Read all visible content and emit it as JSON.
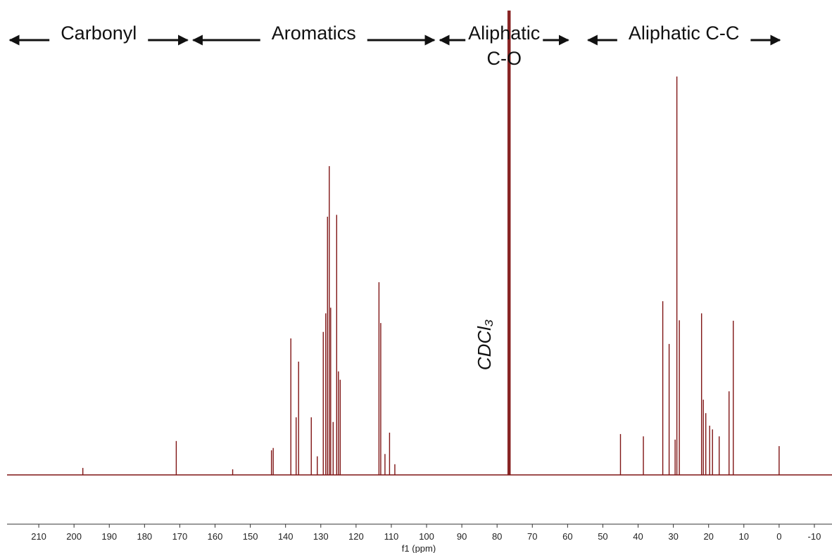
{
  "chart_data": {
    "type": "stick",
    "x_label": "f1 (ppm)",
    "regions": [
      {
        "lines": [
          "Carbonyl"
        ],
        "from": 219,
        "to": 167
      },
      {
        "lines": [
          "Aromatics"
        ],
        "from": 167,
        "to": 97
      },
      {
        "lines": [
          "Aliphatic",
          "C-O"
        ],
        "from": 97,
        "to": 59
      },
      {
        "lines": [
          "Aliphatic C-C"
        ],
        "from": 55,
        "to": -1
      }
    ],
    "solvent_label": "CDCl₃",
    "solvent_ppm": 76.6,
    "color": "#7f1414",
    "x": [
      197.5,
      171,
      155,
      144,
      143.5,
      138.5,
      137,
      136.3,
      132.7,
      131,
      129.3,
      128.6,
      128.1,
      127.6,
      127.2,
      126.5,
      125.5,
      125,
      124.5,
      113.5,
      113,
      111.8,
      110.5,
      109,
      76.9,
      76.6,
      76.3,
      45,
      38.5,
      33,
      31.2,
      29.5,
      29,
      28.3,
      22,
      21.5,
      20.8,
      19.7,
      18.9,
      17,
      14.2,
      13,
      0
    ],
    "values": [
      1.5,
      7.3,
      1.2,
      5.3,
      5.8,
      29.4,
      12.4,
      24.4,
      12.4,
      4,
      30.8,
      34.8,
      55.6,
      66.5,
      36,
      11.4,
      56,
      22.3,
      20.5,
      41.5,
      32.7,
      4.5,
      9.1,
      2.3,
      100,
      100,
      100,
      8.8,
      8.3,
      37.4,
      28.2,
      7.6,
      85.8,
      33.3,
      34.8,
      16.2,
      13.3,
      10.6,
      9.8,
      8.3,
      18,
      33.2,
      6.2
    ],
    "xlim": [
      219,
      -15
    ],
    "ylim": [
      0,
      100
    ],
    "xticks": [
      210,
      200,
      190,
      180,
      170,
      160,
      150,
      140,
      130,
      120,
      110,
      100,
      90,
      80,
      70,
      60,
      50,
      40,
      30,
      20,
      10,
      0,
      -10
    ]
  }
}
